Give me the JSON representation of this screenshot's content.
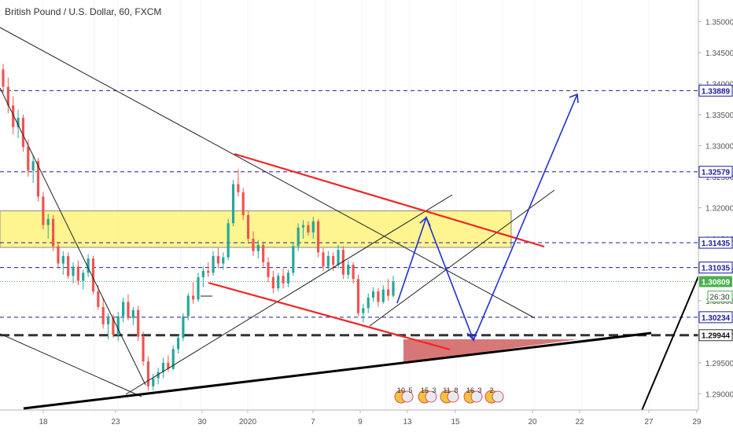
{
  "title": "British Pound / U.S. Dollar, 60, FXCM",
  "colors": {
    "up": "#26a69a",
    "down": "#ef5350",
    "zone_fill": "#fff26b",
    "zone_stroke": "#888888",
    "red_line": "#f22323",
    "blue_level": "#1b1b9e",
    "arrow": "#1f2fd6",
    "price_badge": "#2962ff",
    "current_badge": "#4caf50",
    "support_fill": "#c94a4a"
  },
  "chart_data": {
    "type": "candlestick",
    "y_axis": {
      "ticks": [
        "1.35000",
        "1.34500",
        "1.34000",
        "1.33500",
        "1.33000",
        "1.32500",
        "1.32000",
        "1.31500",
        "1.31000",
        "1.30500",
        "1.30000",
        "1.29500",
        "1.29000"
      ],
      "range": [
        1.2875,
        1.3535
      ]
    },
    "x_axis": {
      "ticks": [
        "18",
        "23",
        "30",
        "2020",
        "7",
        "9",
        "13",
        "15",
        "20",
        "22",
        "27",
        "29"
      ]
    },
    "horizontal_levels": [
      {
        "label": "1.33889",
        "value": 1.33889,
        "style": "dashed"
      },
      {
        "label": "1.32579",
        "value": 1.32579,
        "style": "dashed"
      },
      {
        "label": "1.31435",
        "value": 1.31435,
        "style": "dashed"
      },
      {
        "label": "1.31035",
        "value": 1.31035,
        "style": "dashed"
      },
      {
        "label": "1.30234",
        "value": 1.30234,
        "style": "dashed"
      },
      {
        "label": "1.29944",
        "value": 1.29944,
        "style": "bold-dashed"
      }
    ],
    "current_price": {
      "label": "1.30809",
      "value": 1.30809
    },
    "countdown": "26:30",
    "zone": {
      "from": 1.3136,
      "to": 1.3195
    },
    "candles": [
      [
        1.3423,
        1.3432,
        1.3385,
        1.3395
      ],
      [
        1.3395,
        1.341,
        1.3352,
        1.3365
      ],
      [
        1.3365,
        1.338,
        1.3318,
        1.333
      ],
      [
        1.333,
        1.3358,
        1.3312,
        1.3345
      ],
      [
        1.3345,
        1.335,
        1.329,
        1.3298
      ],
      [
        1.3298,
        1.331,
        1.325,
        1.326
      ],
      [
        1.326,
        1.3285,
        1.324,
        1.3275
      ],
      [
        1.3275,
        1.328,
        1.321,
        1.3218
      ],
      [
        1.3218,
        1.3225,
        1.3165,
        1.3172
      ],
      [
        1.3172,
        1.319,
        1.315,
        1.3182
      ],
      [
        1.3182,
        1.3188,
        1.313,
        1.3138
      ],
      [
        1.3138,
        1.3145,
        1.3102,
        1.311
      ],
      [
        1.311,
        1.313,
        1.3092,
        1.3122
      ],
      [
        1.3122,
        1.3128,
        1.3085,
        1.309
      ],
      [
        1.309,
        1.3112,
        1.3078,
        1.3105
      ],
      [
        1.3105,
        1.3115,
        1.3075,
        1.3082
      ],
      [
        1.3082,
        1.31,
        1.3068,
        1.3095
      ],
      [
        1.3095,
        1.3125,
        1.3088,
        1.3118
      ],
      [
        1.3118,
        1.3122,
        1.306,
        1.3065
      ],
      [
        1.3065,
        1.3075,
        1.3035,
        1.304
      ],
      [
        1.304,
        1.3055,
        1.3005,
        1.3012
      ],
      [
        1.3012,
        1.303,
        1.2988,
        1.3022
      ],
      [
        1.3022,
        1.3028,
        1.299,
        1.2995
      ],
      [
        1.2995,
        1.3032,
        1.2985,
        1.3025
      ],
      [
        1.3025,
        1.3055,
        1.3015,
        1.3048
      ],
      [
        1.3048,
        1.306,
        1.3018,
        1.3022
      ],
      [
        1.3022,
        1.304,
        1.301,
        1.3035
      ],
      [
        1.3035,
        1.3042,
        1.2985,
        1.2992
      ],
      [
        1.2992,
        1.3,
        1.2945,
        1.2952
      ],
      [
        1.2952,
        1.296,
        1.2905,
        1.2912
      ],
      [
        1.2912,
        1.2932,
        1.2905,
        1.2925
      ],
      [
        1.2925,
        1.2942,
        1.2915,
        1.2935
      ],
      [
        1.2935,
        1.2958,
        1.2925,
        1.295
      ],
      [
        1.295,
        1.2962,
        1.2935,
        1.294
      ],
      [
        1.294,
        1.2978,
        1.2938,
        1.2972
      ],
      [
        1.2972,
        1.2995,
        1.2965,
        1.299
      ],
      [
        1.299,
        1.303,
        1.2985,
        1.3025
      ],
      [
        1.3025,
        1.3062,
        1.3018,
        1.3058
      ],
      [
        1.3058,
        1.308,
        1.3045,
        1.3052
      ],
      [
        1.3052,
        1.3095,
        1.3048,
        1.3088
      ],
      [
        1.3088,
        1.3105,
        1.3072,
        1.3098
      ],
      [
        1.3098,
        1.3112,
        1.3088,
        1.3095
      ],
      [
        1.3095,
        1.313,
        1.309,
        1.3122
      ],
      [
        1.3122,
        1.3135,
        1.3102,
        1.311
      ],
      [
        1.311,
        1.3128,
        1.31,
        1.312
      ],
      [
        1.312,
        1.3182,
        1.3115,
        1.3175
      ],
      [
        1.3175,
        1.3245,
        1.317,
        1.3238
      ],
      [
        1.3238,
        1.3262,
        1.3218,
        1.3225
      ],
      [
        1.3225,
        1.3232,
        1.318,
        1.3188
      ],
      [
        1.3188,
        1.3195,
        1.3142,
        1.315
      ],
      [
        1.315,
        1.3162,
        1.3122,
        1.313
      ],
      [
        1.313,
        1.3148,
        1.3118,
        1.314
      ],
      [
        1.314,
        1.3145,
        1.3105,
        1.3112
      ],
      [
        1.3112,
        1.312,
        1.308,
        1.3088
      ],
      [
        1.3088,
        1.3098,
        1.3062,
        1.307
      ],
      [
        1.307,
        1.3095,
        1.3065,
        1.309
      ],
      [
        1.309,
        1.3102,
        1.307,
        1.3078
      ],
      [
        1.3078,
        1.31,
        1.3072,
        1.3095
      ],
      [
        1.3095,
        1.3145,
        1.309,
        1.3138
      ],
      [
        1.3138,
        1.3175,
        1.313,
        1.3168
      ],
      [
        1.3168,
        1.318,
        1.315,
        1.3172
      ],
      [
        1.3172,
        1.3178,
        1.3155,
        1.316
      ],
      [
        1.316,
        1.3185,
        1.315,
        1.3178
      ],
      [
        1.3178,
        1.3182,
        1.312,
        1.3128
      ],
      [
        1.3128,
        1.3135,
        1.3098,
        1.3105
      ],
      [
        1.3105,
        1.313,
        1.31,
        1.3122
      ],
      [
        1.3122,
        1.3128,
        1.3098,
        1.3108
      ],
      [
        1.3108,
        1.314,
        1.3102,
        1.3132
      ],
      [
        1.3132,
        1.3138,
        1.3085,
        1.3092
      ],
      [
        1.3092,
        1.3115,
        1.3085,
        1.3108
      ],
      [
        1.3108,
        1.3112,
        1.3078,
        1.3085
      ],
      [
        1.3085,
        1.3092,
        1.3025,
        1.303
      ],
      [
        1.303,
        1.3045,
        1.3015,
        1.3038
      ],
      [
        1.3038,
        1.3062,
        1.303,
        1.3055
      ],
      [
        1.3055,
        1.3072,
        1.3048,
        1.3065
      ],
      [
        1.3065,
        1.307,
        1.304,
        1.3048
      ],
      [
        1.3048,
        1.3075,
        1.3045,
        1.3068
      ],
      [
        1.3068,
        1.3085,
        1.305,
        1.3058
      ],
      [
        1.3058,
        1.309,
        1.3055,
        1.3081
      ]
    ]
  },
  "events": [
    "10",
    "5",
    "15",
    "3",
    "11",
    "8",
    "16",
    "3",
    "2"
  ]
}
